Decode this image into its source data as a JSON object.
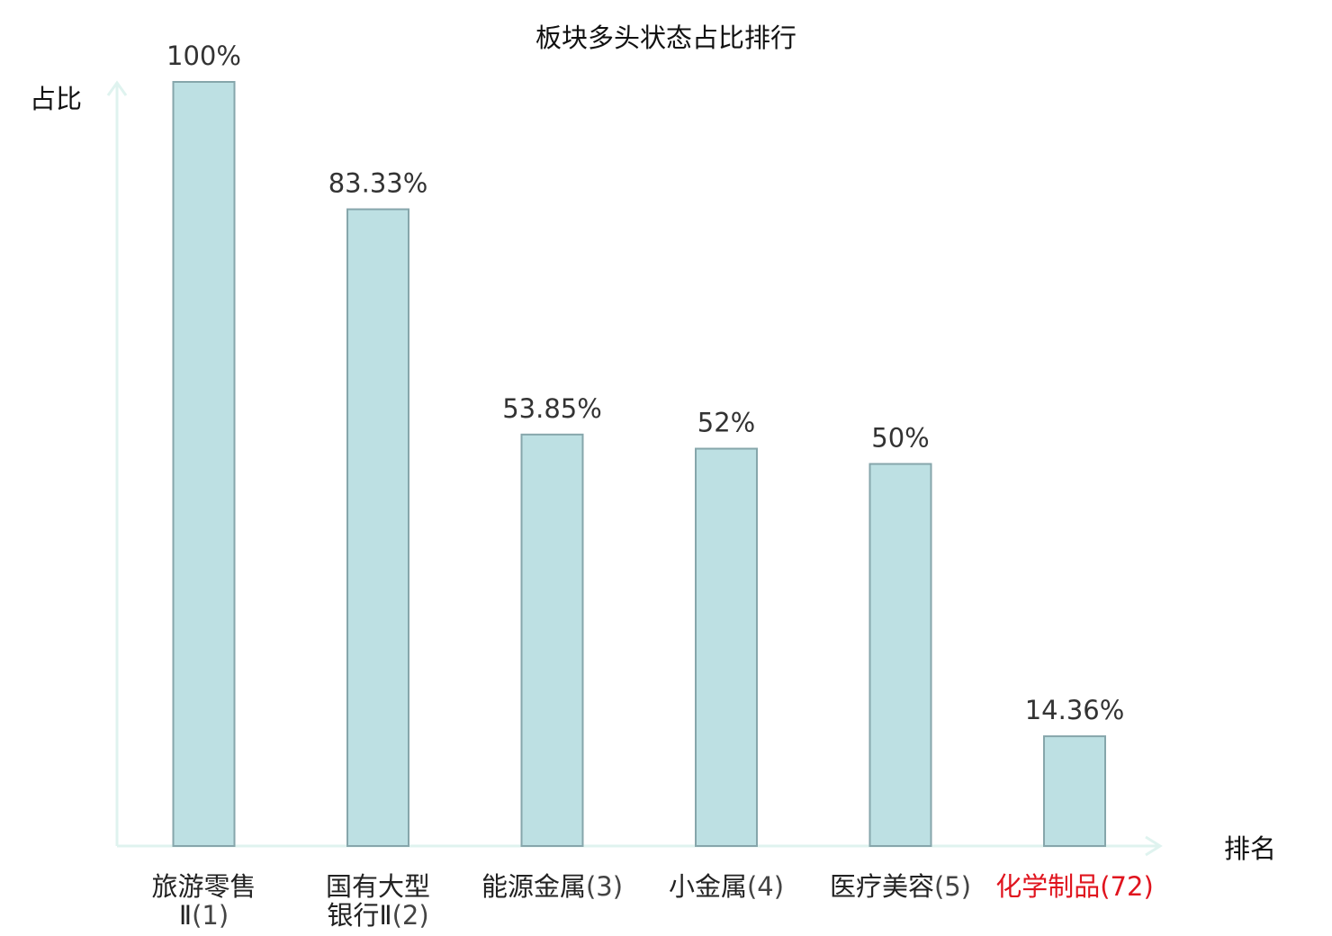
{
  "chart_data": {
    "type": "bar",
    "title": "板块多头状态占比排行",
    "ylabel": "占比",
    "xlabel": "排名",
    "ylim": [
      0,
      100
    ],
    "grid": false,
    "categories": [
      {
        "name_lines": [
          "旅游零售",
          "Ⅱ"
        ],
        "rank": "(1)",
        "highlight": false
      },
      {
        "name_lines": [
          "国有大型",
          "银行Ⅱ"
        ],
        "rank": "(2)",
        "highlight": false
      },
      {
        "name_lines": [
          "能源金属"
        ],
        "rank": "(3)",
        "highlight": false
      },
      {
        "name_lines": [
          "小金属"
        ],
        "rank": "(4)",
        "highlight": false
      },
      {
        "name_lines": [
          "医疗美容"
        ],
        "rank": "(5)",
        "highlight": false
      },
      {
        "name_lines": [
          "化学制品"
        ],
        "rank": "(72)",
        "highlight": true
      }
    ],
    "values": [
      100,
      83.33,
      53.85,
      52,
      50,
      14.36
    ],
    "value_labels": [
      "100%",
      "83.33%",
      "53.85%",
      "52%",
      "50%",
      "14.36%"
    ],
    "colors": {
      "bar_fill": "#bde0e3",
      "bar_stroke": "#86a6ab",
      "axis": "#dff3ef",
      "text": "#222222",
      "value_text": "#333333",
      "highlight": "#e0141e"
    }
  }
}
